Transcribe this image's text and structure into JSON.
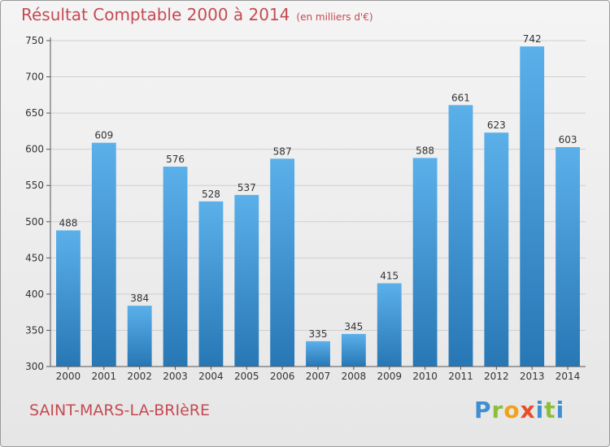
{
  "header": {
    "title": "Résultat Comptable 2000 à 2014",
    "subtitle": "(en milliers d'€)"
  },
  "footer": {
    "commune": "SAINT-MARS-LA-BRIèRE",
    "logo_text": "Proxiti"
  },
  "colors": {
    "bar_top": "#5bb0ea",
    "bar_bottom": "#2777b5",
    "title": "#c64a52",
    "grid": "#cfcfcf"
  },
  "chart_data": {
    "type": "bar",
    "title": "Résultat Comptable 2000 à 2014",
    "xlabel": "",
    "ylabel": "",
    "categories": [
      "2000",
      "2001",
      "2002",
      "2003",
      "2004",
      "2005",
      "2006",
      "2007",
      "2008",
      "2009",
      "2010",
      "2011",
      "2012",
      "2013",
      "2014"
    ],
    "values": [
      488,
      609,
      384,
      576,
      528,
      537,
      587,
      335,
      345,
      415,
      588,
      661,
      623,
      742,
      603
    ],
    "ylim": [
      300,
      750
    ],
    "yticks": [
      300,
      350,
      400,
      450,
      500,
      550,
      600,
      650,
      700,
      750
    ],
    "grid": true,
    "data_labels": true
  }
}
